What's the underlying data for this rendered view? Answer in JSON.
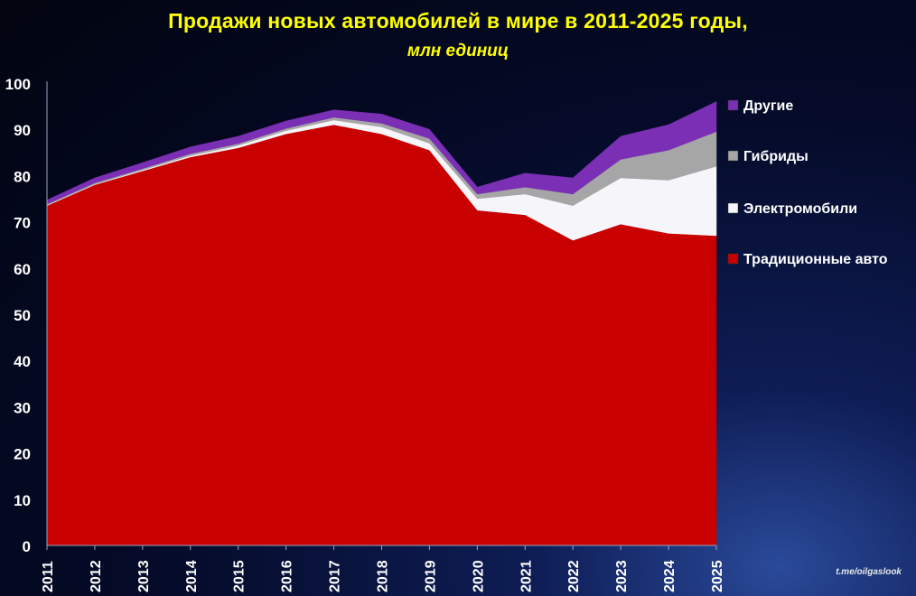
{
  "title": "Продажи новых автомобилей в мире в  2011-2025 годы,",
  "subtitle": "млн единиц",
  "watermark": "t.me/oilgaslook",
  "colors": {
    "traditional": "#c80000",
    "ev": "#f5f5fa",
    "hybrid": "#a6a6a6",
    "other": "#7a2fb4",
    "axis_text": "#ffffff",
    "title": "#ffff00"
  },
  "chart_data": {
    "type": "area",
    "stacked": true,
    "title": "Продажи новых автомобилей в мире в  2011-2025 годы,",
    "subtitle": "млн единиц",
    "x": [
      "2011",
      "2012",
      "2013",
      "2014",
      "2015",
      "2016",
      "2017",
      "2018",
      "2019",
      "2020",
      "2021",
      "2022",
      "2023",
      "2024",
      "2025"
    ],
    "y_ticks": [
      0,
      10,
      20,
      30,
      40,
      50,
      60,
      70,
      80,
      90,
      100
    ],
    "ylim": [
      0,
      100
    ],
    "grid": false,
    "legend_position": "right",
    "series": [
      {
        "name": "Традиционные авто",
        "color": "#c80000",
        "values": [
          73.5,
          78,
          81,
          84,
          86,
          89,
          91,
          89,
          85.5,
          72.5,
          71.5,
          66,
          69.5,
          67.5,
          67
        ]
      },
      {
        "name": "Электромобили",
        "color": "#f5f5fa",
        "values": [
          0.1,
          0.1,
          0.2,
          0.3,
          0.5,
          0.7,
          1.0,
          1.5,
          1.5,
          2.5,
          4.5,
          7.5,
          10.0,
          11.5,
          15.0
        ]
      },
      {
        "name": "Гибриды",
        "color": "#a6a6a6",
        "values": [
          0.2,
          0.3,
          0.3,
          0.4,
          0.4,
          0.5,
          0.6,
          0.8,
          1.0,
          1.0,
          1.5,
          2.5,
          4.0,
          6.5,
          7.5
        ]
      },
      {
        "name": "Другие",
        "color": "#7a2fb4",
        "values": [
          0.9,
          1.1,
          1.3,
          1.5,
          1.6,
          1.6,
          1.6,
          2.0,
          2.0,
          1.5,
          3.0,
          3.5,
          5.0,
          5.5,
          6.5
        ]
      }
    ],
    "legend_order": [
      "Другие",
      "Гибриды",
      "Электромобили",
      "Традиционные авто"
    ]
  }
}
